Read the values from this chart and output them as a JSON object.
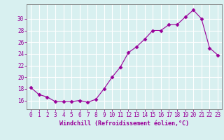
{
  "x": [
    0,
    1,
    2,
    3,
    4,
    5,
    6,
    7,
    8,
    9,
    10,
    11,
    12,
    13,
    14,
    15,
    16,
    17,
    18,
    19,
    20,
    21,
    22,
    23
  ],
  "y": [
    18.2,
    17.0,
    16.6,
    15.8,
    15.8,
    15.8,
    16.0,
    15.7,
    16.2,
    18.0,
    20.0,
    21.7,
    24.2,
    25.2,
    26.5,
    28.0,
    28.0,
    29.0,
    29.0,
    30.3,
    31.5,
    30.0,
    25.0,
    23.8
  ],
  "line_color": "#990099",
  "marker": "D",
  "marker_size": 2.5,
  "bg_color": "#d8f0f0",
  "grid_color": "#ffffff",
  "axis_color": "#808080",
  "tick_color": "#990099",
  "xlabel": "Windchill (Refroidissement éolien,°C)",
  "xlabel_fontsize": 6.0,
  "tick_fontsize": 5.5,
  "ytick_labels": [
    16,
    18,
    20,
    22,
    24,
    26,
    28,
    30
  ],
  "ylim": [
    14.5,
    32.5
  ],
  "xlim": [
    -0.5,
    23.5
  ]
}
